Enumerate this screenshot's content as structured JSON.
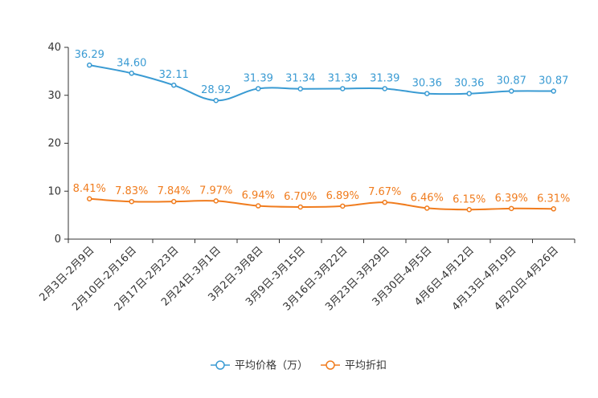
{
  "chart_data": {
    "type": "line",
    "categories": [
      "2月3日-2月9日",
      "2月10日-2月16日",
      "2月17日-2月23日",
      "2月24日-3月1日",
      "3月2日-3月8日",
      "3月9日-3月15日",
      "3月16日-3月22日",
      "3月23日-3月29日",
      "3月30日-4月5日",
      "4月6日-4月12日",
      "4月13日-4月19日",
      "4月20日-4月26日"
    ],
    "ylim": [
      0,
      40
    ],
    "yticks": [
      "0",
      "10",
      "20",
      "30",
      "40"
    ],
    "series": [
      {
        "name": "平均价格（万）",
        "color": "#3a9bd3",
        "values": [
          36.29,
          34.6,
          32.11,
          28.92,
          31.39,
          31.34,
          31.39,
          31.39,
          30.36,
          30.36,
          30.87,
          30.87
        ],
        "labels": [
          "36.29",
          "34.60",
          "32.11",
          "28.92",
          "31.39",
          "31.34",
          "31.39",
          "31.39",
          "30.36",
          "30.36",
          "30.87",
          "30.87"
        ]
      },
      {
        "name": "平均折扣",
        "color": "#f07c1e",
        "values": [
          8.41,
          7.83,
          7.84,
          7.97,
          6.94,
          6.7,
          6.89,
          7.67,
          6.46,
          6.15,
          6.39,
          6.31
        ],
        "labels": [
          "8.41%",
          "7.83%",
          "7.84%",
          "7.97%",
          "6.94%",
          "6.70%",
          "6.89%",
          "7.67%",
          "6.46%",
          "6.15%",
          "6.39%",
          "6.31%"
        ]
      }
    ],
    "legend_position": "bottom"
  }
}
